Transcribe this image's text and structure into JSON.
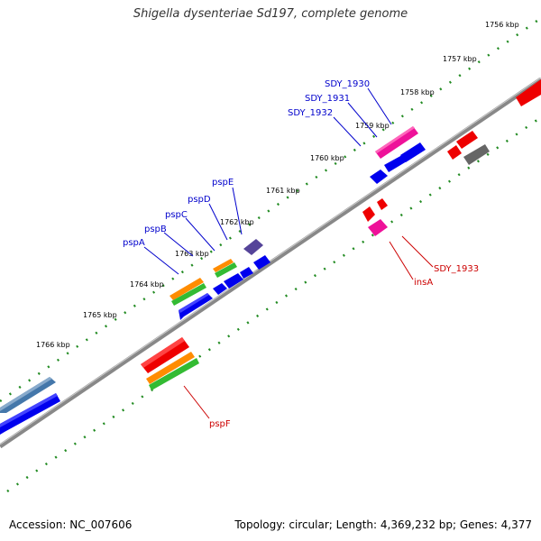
{
  "title": "Shigella dysenteriae Sd197, complete genome",
  "accession": "Accession: NC_007606",
  "summary": "Topology: circular; Length: 4,369,232 bp; Genes: 4,377",
  "kbp_labels": [
    "1756 kbp",
    "1757 kbp",
    "1758 kbp",
    "1759 kbp",
    "1760 kbp",
    "1761 kbp",
    "1762 kbp",
    "1763 kbp",
    "1764 kbp",
    "1765 kbp",
    "1766 kbp"
  ],
  "gene_labels": {
    "blue": [
      "SDY_1930",
      "SDY_1931",
      "SDY_1932",
      "pspE",
      "pspD",
      "pspC",
      "pspB",
      "pspA"
    ],
    "red": [
      "SDY_1933",
      "insA",
      "pspF"
    ]
  },
  "colors": {
    "label_blue": "#0000cc",
    "label_red": "#cc0000",
    "tick_green": "#228b22",
    "backbone": "#888888",
    "gene_blue": "#0000ee",
    "gene_red": "#ee0000",
    "gene_orange": "#ff8c00",
    "gene_green": "#33bb33",
    "gene_magenta": "#ee1199",
    "gene_purple": "#554499",
    "gene_steelblue": "#4477aa",
    "gene_gray": "#666666"
  }
}
